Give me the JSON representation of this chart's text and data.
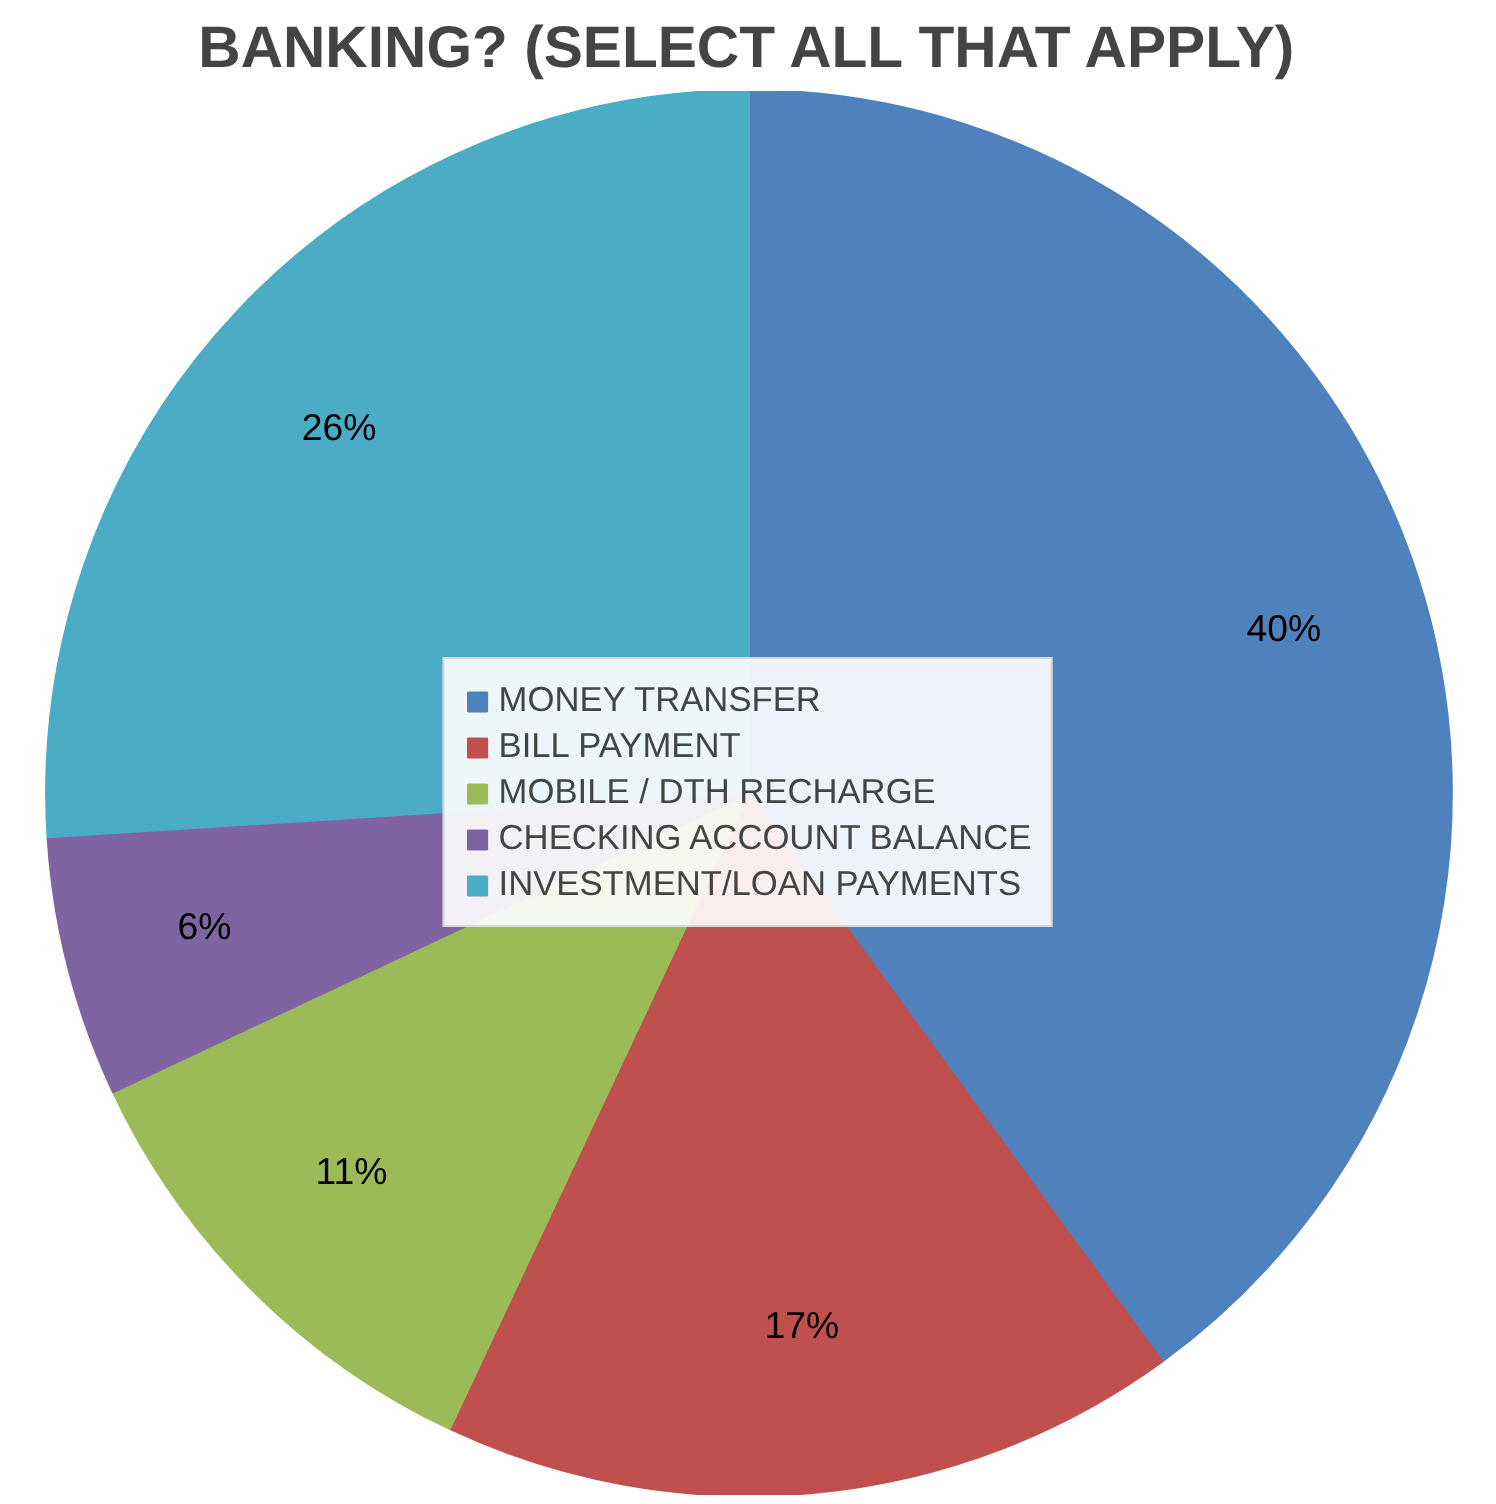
{
  "chart_data": {
    "type": "pie",
    "title": "BANKING? (SELECT ALL THAT APPLY)",
    "categories": [
      "MONEY TRANSFER",
      "BILL PAYMENT",
      "MOBILE / DTH RECHARGE",
      "CHECKING ACCOUNT BALANCE",
      "INVESTMENT/LOAN PAYMENTS"
    ],
    "values": [
      40,
      17,
      11,
      6,
      26
    ],
    "colors": [
      "#4f81bd",
      "#c0504d",
      "#9bbb59",
      "#8064a2",
      "#4bacc6"
    ],
    "value_labels": [
      "40%",
      "17%",
      "11%",
      "6%",
      "26%"
    ],
    "legend": "center"
  }
}
